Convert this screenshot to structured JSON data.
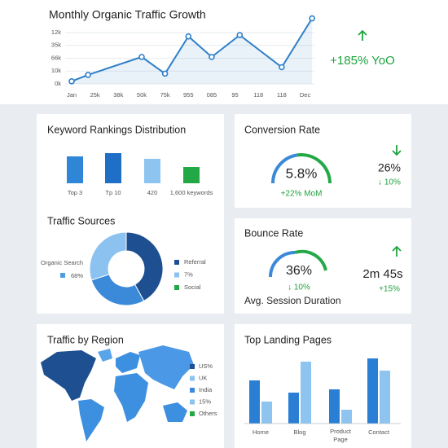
{
  "chart_data": [
    {
      "type": "line",
      "title": "Monthly Organic Traffic Growth",
      "x": [
        0,
        0.7,
        3,
        4,
        5,
        6,
        7.2,
        9,
        10.3
      ],
      "series": [
        {
          "color": "#2f7fc8",
          "values": [
            0.2,
            0.7,
            2.1,
            0.8,
            3.7,
            2.1,
            3.8,
            1.3,
            5.1
          ]
        }
      ],
      "xlim": [
        0,
        10.4
      ],
      "xticks": [
        {
          "value": 0,
          "label": "Jan"
        },
        {
          "value": 1,
          "label": "25k"
        },
        {
          "value": 2,
          "label": "38k"
        },
        {
          "value": 3,
          "label": "50k"
        },
        {
          "value": 4,
          "label": "75k"
        },
        {
          "value": 5,
          "label": "955"
        },
        {
          "value": 6,
          "label": "085"
        },
        {
          "value": 7,
          "label": "95"
        },
        {
          "value": 8,
          "label": "118"
        },
        {
          "value": 9,
          "label": "118"
        },
        {
          "value": 10,
          "label": "Dec"
        }
      ],
      "ylim": [
        0,
        5.2
      ],
      "yticks": [
        {
          "value": 0,
          "label": "0k"
        },
        {
          "value": 1,
          "label": "10k"
        },
        {
          "value": 2,
          "label": "66k"
        },
        {
          "value": 3,
          "label": "35k"
        },
        {
          "value": 4,
          "label": "12k"
        }
      ],
      "grid": true
    },
    {
      "type": "bar",
      "title": "Keyword Rankings Distribution",
      "categories": [
        "Top 3",
        "Tp 10",
        "420",
        "1,600 keywords"
      ],
      "values": [
        33,
        37,
        30,
        20
      ],
      "colors": [
        "#2f86d6",
        "#1f6fc6",
        "#8ec4f0",
        "#22a845"
      ],
      "ylim": [
        0,
        40
      ]
    },
    {
      "type": "pie",
      "title": "Traffic Sources",
      "donut": true,
      "values": [
        42,
        28,
        30
      ],
      "colors": [
        "#1d4f91",
        "#3b8ad9",
        "#8cc2ef"
      ],
      "side_label": "Organic Search",
      "side_value": "68%",
      "side_color": "#4f9be3",
      "legend": [
        {
          "label": "Referral",
          "color": "#1d4f91"
        },
        {
          "label": "7%",
          "color": "#8cc2ef"
        },
        {
          "label": "Social",
          "color": "#22a845"
        }
      ]
    },
    {
      "type": "grouped_bar",
      "title": "Top Landing Pages",
      "categories": [
        "Home",
        "Blog",
        "Product Page",
        "Contact"
      ],
      "series": [
        {
          "color": "#2a7fd4",
          "values": [
            53,
            38,
            42,
            80
          ]
        },
        {
          "color": "#8ec4f0",
          "values": [
            27,
            76,
            17,
            65
          ]
        }
      ],
      "ylim": [
        0,
        85
      ]
    }
  ],
  "growth": {
    "change": "+185% YoO"
  },
  "conversion": {
    "title": "Conversion Rate",
    "value": "5.8%",
    "change": "+22% MoM",
    "side_value": "26%",
    "side_change": "↓ 10%"
  },
  "bounce": {
    "title": "Bounce Rate",
    "value": "36%",
    "change": "↓ 10%",
    "caption": "Avg. Session Duration",
    "side_value": "2m 45s",
    "side_change": "+15%"
  },
  "region": {
    "title": "Traffic by Region",
    "legend": [
      {
        "label": "US%",
        "color": "#1d4f91"
      },
      {
        "label": "UK",
        "color": "#8cc2ef"
      },
      {
        "label": "India",
        "color": "#3b8ad9"
      },
      {
        "label": "15%",
        "color": "#8cc2ef"
      },
      {
        "label": "Others",
        "color": "#22a845"
      }
    ]
  }
}
